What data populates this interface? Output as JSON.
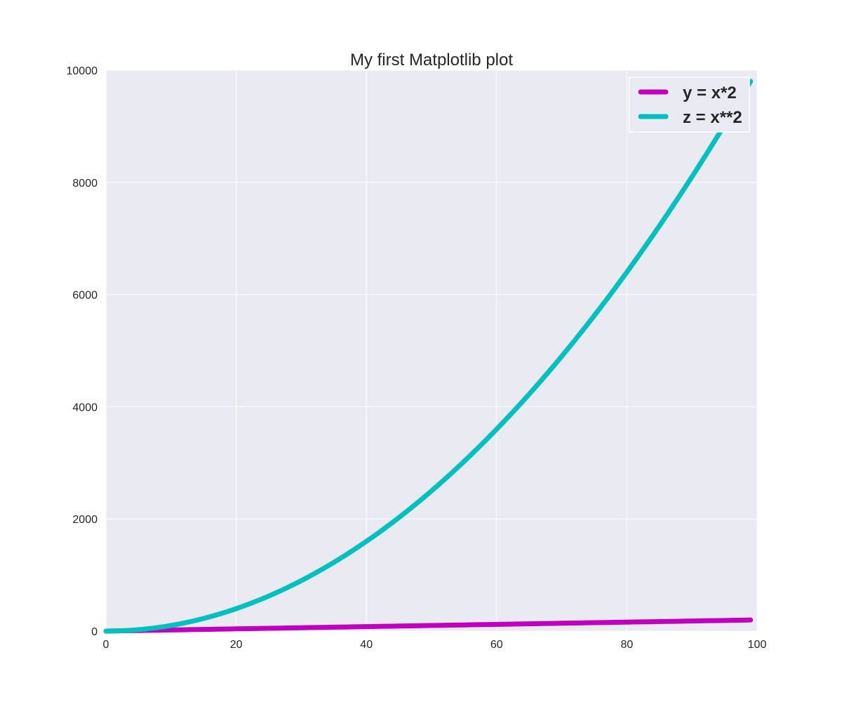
{
  "chart_data": {
    "type": "line",
    "title": "My first Matplotlib plot",
    "xlabel": "",
    "ylabel": "",
    "xlim": [
      0,
      100
    ],
    "ylim": [
      0,
      10000
    ],
    "x_ticks": [
      0,
      20,
      40,
      60,
      80,
      100
    ],
    "y_ticks": [
      0,
      2000,
      4000,
      6000,
      8000,
      10000
    ],
    "grid": true,
    "legend_position": "top-right",
    "x_start": 0,
    "x_end": 99,
    "series": [
      {
        "name": "y = x*2",
        "formula": "x*2",
        "color": "#bf00bf",
        "endpoints": [
          [
            0,
            0
          ],
          [
            99,
            198
          ]
        ]
      },
      {
        "name": "z = x**2",
        "formula": "x**2",
        "color": "#00bfbf",
        "endpoints": [
          [
            0,
            0
          ],
          [
            99,
            9801
          ]
        ]
      }
    ],
    "colors": {
      "plot_background": "#eaeaf2",
      "grid": "#ffffff",
      "text": "#262626"
    }
  }
}
